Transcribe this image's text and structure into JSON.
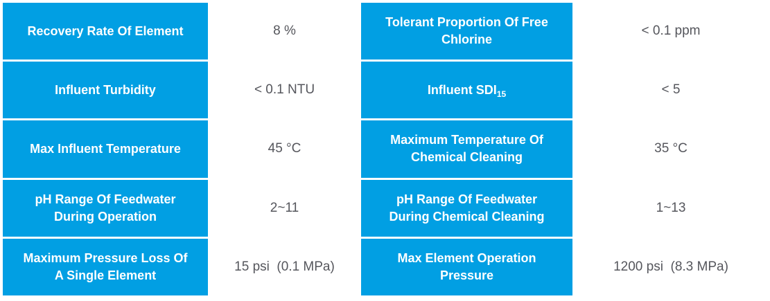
{
  "theme": {
    "header_bg": "#019FE3",
    "header_text": "#FFFFFF",
    "value_text": "#55565C",
    "value_bg_odd": "#E5E5E5",
    "value_bg_even": "#FFFFFF",
    "divider": "#FFFFFF"
  },
  "table": {
    "rows": [
      {
        "left": {
          "label": "Recovery Rate Of Element",
          "value": "8 %"
        },
        "right": {
          "label": "Tolerant Proportion Of Free\nChlorine",
          "value": "< 0.1 ppm"
        }
      },
      {
        "left": {
          "label": "Influent Turbidity",
          "value": "< 0.1 NTU"
        },
        "right": {
          "label": "Influent SDI",
          "label_sub": "15",
          "value": "< 5"
        }
      },
      {
        "left": {
          "label": "Max Influent Temperature",
          "value": "45 °C"
        },
        "right": {
          "label": "Maximum Temperature Of\nChemical Cleaning",
          "value": "35 °C"
        }
      },
      {
        "left": {
          "label": "pH Range Of Feedwater\nDuring Operation",
          "value": "2~11"
        },
        "right": {
          "label": "pH Range Of Feedwater\nDuring Chemical Cleaning",
          "value": "1~13"
        }
      },
      {
        "left": {
          "label": "Maximum Pressure Loss Of\nA Single Element",
          "value": "15 psi  (0.1 MPa)"
        },
        "right": {
          "label": "Max Element Operation\nPressure",
          "value": "1200 psi  (8.3 MPa)"
        }
      }
    ]
  }
}
